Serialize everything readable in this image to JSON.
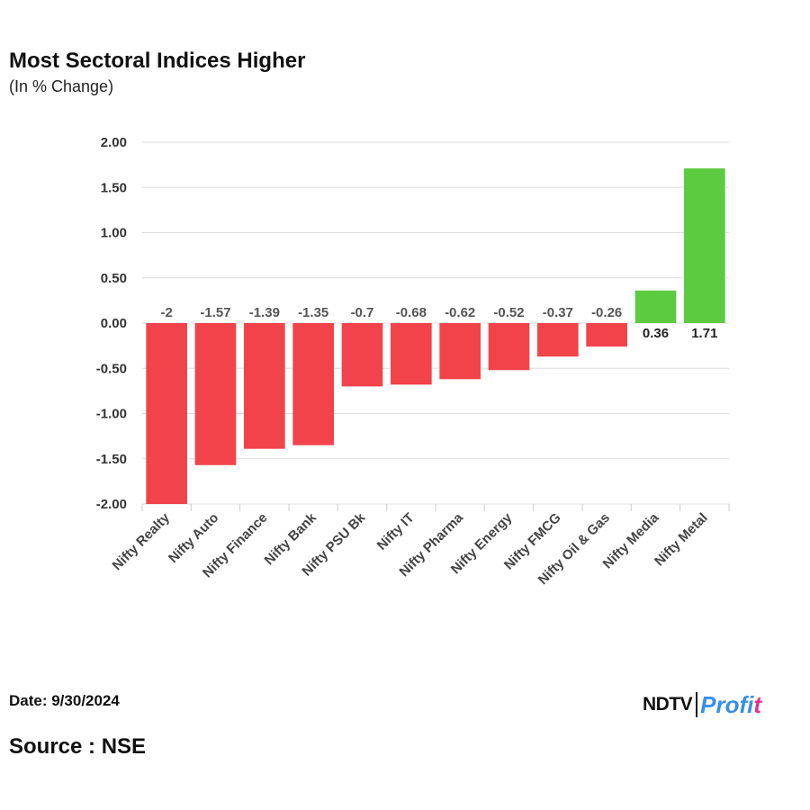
{
  "title": "Most Sectoral Indices Higher",
  "subtitle": "(In % Change)",
  "footer": {
    "date_label": "Date: 9/30/2024",
    "source_label": "Source : NSE"
  },
  "logo": {
    "brand": "NDTV",
    "product_main": "Profi",
    "product_tail": "t"
  },
  "colors": {
    "positive": "#5ccb3f",
    "negative": "#f2434b",
    "grid": "#dddddd"
  },
  "chart_data": {
    "type": "bar",
    "categories": [
      "Nifty Realty",
      "Nifty Auto",
      "Nifty Finance",
      "Nifty Bank",
      "Nifty PSU Bk",
      "Nifty IT",
      "Nifty Pharma",
      "Nifty Energy",
      "Nifty FMCG",
      "Nifty Oil & Gas",
      "Nifty Media",
      "Nifty Metal"
    ],
    "values": [
      -2,
      -1.57,
      -1.39,
      -1.35,
      -0.7,
      -0.68,
      -0.62,
      -0.52,
      -0.37,
      -0.26,
      0.36,
      1.71
    ],
    "data_labels": [
      "-2",
      "-1.57",
      "-1.39",
      "-1.35",
      "-0.7",
      "-0.68",
      "-0.62",
      "-0.52",
      "-0.37",
      "-0.26",
      "0.36",
      "1.71"
    ],
    "yticks": [
      "2.00",
      "1.50",
      "1.00",
      "0.50",
      "0.00",
      "-0.50",
      "-1.00",
      "-1.50",
      "-2.00"
    ],
    "ylim": [
      -2,
      2
    ],
    "grid": true,
    "title": "Most Sectoral Indices Higher",
    "xlabel": "",
    "ylabel": ""
  }
}
